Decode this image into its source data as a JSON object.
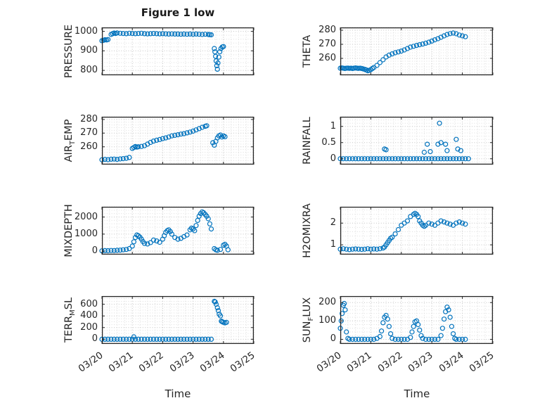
{
  "figure": {
    "title": "Figure 1 low",
    "xlabel": "Time",
    "background": "#ffffff",
    "marker_color": "#0072BD",
    "axis_color": "#262626",
    "grid_color": "#c3c3c3",
    "minor_grid_color": "#dedede"
  },
  "chart_data": {
    "type": "scatter",
    "layout": "4 rows x 2 columns of subplots, shared time x-axis, open circle markers",
    "x_minor_step": 0.25,
    "x_axis": {
      "label": "Time",
      "lim": [
        0,
        5
      ],
      "ticks": [
        0,
        1,
        2,
        3,
        4,
        5
      ],
      "tick_labels": [
        "03/20",
        "03/21",
        "03/22",
        "03/23",
        "03/24",
        "03/25"
      ]
    },
    "subplots": [
      {
        "id": "pressure",
        "ylabel": "PRESSURE",
        "ylabel_parts": [
          {
            "t": "PRESSURE"
          }
        ],
        "ylim": [
          775,
          1020
        ],
        "yticks": [
          800,
          900,
          1000
        ],
        "ytick_labels": [
          "800",
          "900",
          "1000"
        ],
        "x": [
          0,
          0.05,
          0.1,
          0.15,
          0.2,
          0.3,
          0.35,
          0.4,
          0.45,
          0.5,
          0.6,
          0.7,
          0.8,
          0.9,
          1,
          1.1,
          1.2,
          1.3,
          1.4,
          1.5,
          1.6,
          1.7,
          1.8,
          1.9,
          2,
          2.1,
          2.2,
          2.3,
          2.4,
          2.5,
          2.6,
          2.7,
          2.8,
          2.9,
          3,
          3.1,
          3.2,
          3.3,
          3.4,
          3.5,
          3.55,
          3.6,
          3.7,
          3.72,
          3.74,
          3.76,
          3.78,
          3.8,
          3.82,
          3.85,
          3.88,
          3.92,
          3.96,
          4
        ],
        "y": [
          952,
          954,
          957,
          956,
          958,
          984,
          988,
          991,
          989,
          992,
          990,
          989,
          988,
          990,
          989,
          988,
          989,
          990,
          988,
          987,
          988,
          989,
          988,
          987,
          988,
          987,
          986,
          987,
          986,
          986,
          985,
          986,
          985,
          986,
          985,
          986,
          985,
          984,
          985,
          984,
          983,
          982,
          912,
          895,
          872,
          848,
          824,
          806,
          838,
          868,
          895,
          912,
          920,
          922
        ]
      },
      {
        "id": "theta",
        "ylabel": "THETA",
        "ylabel_parts": [
          {
            "t": "THETA"
          }
        ],
        "ylim": [
          248,
          282
        ],
        "yticks": [
          260,
          270,
          280
        ],
        "ytick_labels": [
          "260",
          "270",
          "280"
        ],
        "x": [
          0,
          0.05,
          0.1,
          0.15,
          0.2,
          0.25,
          0.3,
          0.35,
          0.4,
          0.45,
          0.5,
          0.55,
          0.6,
          0.65,
          0.7,
          0.75,
          0.8,
          0.85,
          0.9,
          0.95,
          1,
          1.05,
          1.1,
          1.2,
          1.3,
          1.4,
          1.5,
          1.6,
          1.7,
          1.8,
          1.9,
          2,
          2.1,
          2.2,
          2.3,
          2.4,
          2.5,
          2.6,
          2.7,
          2.8,
          2.9,
          3,
          3.1,
          3.2,
          3.3,
          3.4,
          3.5,
          3.6,
          3.7,
          3.8,
          3.9,
          4,
          4.1
        ],
        "y": [
          253,
          253.2,
          253,
          252.8,
          253,
          253.1,
          252.9,
          253,
          252.8,
          253,
          253.2,
          253,
          252.9,
          253,
          252.8,
          252.5,
          252.2,
          251.8,
          251.2,
          251.5,
          252,
          252.8,
          253.5,
          255,
          257,
          259,
          261,
          262.3,
          263.2,
          264,
          264.6,
          265.2,
          266,
          267,
          268,
          268.6,
          269.2,
          269.7,
          270.2,
          270.8,
          271.5,
          272.3,
          273.2,
          274,
          275,
          276,
          277,
          277.6,
          278,
          277.5,
          276.6,
          276,
          275.4
        ]
      },
      {
        "id": "air-temp",
        "ylabel": "AIR_TEMP",
        "ylabel_parts": [
          {
            "t": "AIR"
          },
          {
            "s": "T"
          },
          {
            "t": "EMP"
          }
        ],
        "ylim": [
          247,
          282
        ],
        "yticks": [
          260,
          270,
          280
        ],
        "ytick_labels": [
          "260",
          "270",
          "280"
        ],
        "x": [
          0,
          0.1,
          0.2,
          0.3,
          0.4,
          0.5,
          0.6,
          0.7,
          0.8,
          0.9,
          1,
          1.05,
          1.1,
          1.15,
          1.2,
          1.3,
          1.4,
          1.5,
          1.6,
          1.7,
          1.8,
          1.9,
          2,
          2.1,
          2.2,
          2.3,
          2.4,
          2.5,
          2.6,
          2.7,
          2.8,
          2.9,
          3,
          3.1,
          3.2,
          3.3,
          3.4,
          3.45,
          3.65,
          3.7,
          3.75,
          3.8,
          3.85,
          3.9,
          3.95,
          4,
          4.05
        ],
        "y": [
          250.5,
          250.8,
          250.6,
          250.9,
          251,
          250.8,
          251.1,
          251.3,
          251.6,
          252.2,
          258.8,
          259.5,
          260.2,
          259.8,
          260,
          260.3,
          260.8,
          262,
          263.2,
          264.2,
          264.8,
          265.3,
          266,
          266.5,
          267.2,
          268,
          268.4,
          268.8,
          269.3,
          269.6,
          270.2,
          270.8,
          271.5,
          272.4,
          273.3,
          274.3,
          275,
          275.4,
          263,
          261.2,
          264,
          266.5,
          268,
          268.6,
          267.2,
          268,
          267.4
        ]
      },
      {
        "id": "rainfall",
        "ylabel": "RAINFALL",
        "ylabel_parts": [
          {
            "t": "RAINFALL"
          }
        ],
        "ylim": [
          -0.18,
          1.3
        ],
        "yticks": [
          0,
          0.5,
          1
        ],
        "ytick_labels": [
          "0",
          "0.5",
          "1"
        ],
        "x": [
          0,
          0.1,
          0.2,
          0.3,
          0.4,
          0.5,
          0.6,
          0.7,
          0.8,
          0.9,
          1,
          1.1,
          1.2,
          1.3,
          1.4,
          1.5,
          1.6,
          1.7,
          1.8,
          1.9,
          2,
          2.1,
          2.2,
          2.3,
          2.4,
          2.5,
          2.6,
          2.7,
          2.8,
          2.9,
          3,
          3.1,
          3.2,
          3.3,
          3.4,
          3.5,
          3.6,
          3.7,
          3.8,
          3.9,
          4,
          4.1,
          4.2,
          1.45,
          1.5,
          2.75,
          2.85,
          2.95,
          3.2,
          3.25,
          3.3,
          3.45,
          3.5,
          3.8,
          3.85,
          3.95
        ],
        "y": [
          0,
          0,
          0,
          0,
          0,
          0,
          0,
          0,
          0,
          0,
          0,
          0,
          0,
          0,
          0,
          0,
          0,
          0,
          0,
          0,
          0,
          0,
          0,
          0,
          0,
          0,
          0,
          0,
          0,
          0,
          0,
          0,
          0,
          0,
          0,
          0,
          0,
          0,
          0,
          0,
          0,
          0,
          0,
          0.3,
          0.28,
          0.2,
          0.45,
          0.22,
          0.45,
          1.1,
          0.5,
          0.45,
          0.25,
          0.6,
          0.3,
          0.25
        ]
      },
      {
        "id": "mixdepth",
        "ylabel": "MIXDEPTH",
        "ylabel_parts": [
          {
            "t": "MIXDEPTH"
          }
        ],
        "ylim": [
          -200,
          2600
        ],
        "yticks": [
          0,
          1000,
          2000
        ],
        "ytick_labels": [
          "0",
          "1000",
          "2000"
        ],
        "x": [
          0,
          0.1,
          0.2,
          0.3,
          0.4,
          0.5,
          0.6,
          0.7,
          0.8,
          0.9,
          1,
          1.05,
          1.1,
          1.15,
          1.2,
          1.25,
          1.3,
          1.35,
          1.4,
          1.5,
          1.6,
          1.7,
          1.8,
          1.9,
          2,
          2.05,
          2.1,
          2.15,
          2.2,
          2.25,
          2.3,
          2.4,
          2.5,
          2.6,
          2.7,
          2.8,
          2.9,
          2.95,
          3,
          3.05,
          3.1,
          3.15,
          3.2,
          3.25,
          3.3,
          3.35,
          3.4,
          3.45,
          3.5,
          3.55,
          3.6,
          3.7,
          3.75,
          3.8,
          3.9,
          4,
          4.05,
          4.1,
          4.15
        ],
        "y": [
          20,
          30,
          25,
          40,
          35,
          50,
          60,
          80,
          100,
          150,
          300,
          550,
          800,
          950,
          900,
          820,
          700,
          560,
          450,
          420,
          500,
          650,
          600,
          520,
          700,
          900,
          1100,
          1200,
          1250,
          1150,
          1000,
          800,
          700,
          750,
          850,
          950,
          1250,
          1350,
          1300,
          1200,
          1500,
          1800,
          2050,
          2200,
          2300,
          2250,
          2150,
          2050,
          1900,
          1600,
          1300,
          150,
          80,
          50,
          100,
          350,
          400,
          300,
          80
        ]
      },
      {
        "id": "h2omixra",
        "ylabel": "H2OMIXRA",
        "ylabel_parts": [
          {
            "t": "H2OMIXRA"
          }
        ],
        "ylim": [
          0.55,
          2.75
        ],
        "yticks": [
          1,
          2
        ],
        "ytick_labels": [
          "1",
          "2"
        ],
        "x": [
          0,
          0.1,
          0.2,
          0.3,
          0.4,
          0.5,
          0.6,
          0.7,
          0.8,
          0.9,
          1,
          1.1,
          1.2,
          1.3,
          1.4,
          1.45,
          1.5,
          1.55,
          1.6,
          1.65,
          1.7,
          1.8,
          1.9,
          2,
          2.1,
          2.2,
          2.3,
          2.4,
          2.45,
          2.5,
          2.55,
          2.6,
          2.65,
          2.7,
          2.75,
          2.8,
          2.9,
          3,
          3.1,
          3.2,
          3.3,
          3.4,
          3.5,
          3.6,
          3.7,
          3.8,
          3.9,
          4,
          4.1
        ],
        "y": [
          0.8,
          0.82,
          0.8,
          0.78,
          0.8,
          0.81,
          0.8,
          0.79,
          0.8,
          0.82,
          0.8,
          0.81,
          0.8,
          0.82,
          0.85,
          0.9,
          1,
          1.1,
          1.2,
          1.3,
          1.35,
          1.5,
          1.7,
          1.9,
          2,
          2.1,
          2.3,
          2.4,
          2.45,
          2.4,
          2.3,
          2.1,
          2,
          1.9,
          1.85,
          1.9,
          2,
          1.95,
          1.9,
          2,
          2.1,
          2.05,
          2,
          1.95,
          1.9,
          2,
          2.05,
          2,
          1.95
        ]
      },
      {
        "id": "terr-msl",
        "ylabel": "TERR_MSL",
        "ylabel_parts": [
          {
            "t": "TERR"
          },
          {
            "s": "M"
          },
          {
            "t": "SL"
          }
        ],
        "ylim": [
          -80,
          740
        ],
        "yticks": [
          0,
          200,
          400,
          600
        ],
        "ytick_labels": [
          "0",
          "200",
          "400",
          "600"
        ],
        "x": [
          0,
          0.1,
          0.2,
          0.3,
          0.4,
          0.5,
          0.6,
          0.7,
          0.8,
          0.9,
          1,
          1.1,
          1.2,
          1.3,
          1.4,
          1.5,
          1.6,
          1.7,
          1.8,
          1.9,
          2,
          2.1,
          2.2,
          2.3,
          2.4,
          2.5,
          2.6,
          2.7,
          2.8,
          2.9,
          3,
          3.1,
          3.2,
          3.3,
          3.4,
          3.5,
          3.6,
          1.05,
          3.7,
          3.73,
          3.76,
          3.8,
          3.83,
          3.86,
          3.9,
          3.93,
          3.96,
          4,
          4.05,
          4.1
        ],
        "y": [
          0,
          0,
          0,
          0,
          0,
          0,
          0,
          0,
          0,
          0,
          0,
          0,
          0,
          0,
          0,
          0,
          0,
          0,
          0,
          0,
          0,
          0,
          0,
          0,
          0,
          0,
          0,
          0,
          0,
          0,
          0,
          0,
          0,
          0,
          0,
          0,
          0,
          40,
          650,
          640,
          600,
          540,
          490,
          430,
          400,
          310,
          300,
          290,
          280,
          290
        ]
      },
      {
        "id": "sun-flux",
        "ylabel": "SUN_FLUX",
        "ylabel_parts": [
          {
            "t": "SUN"
          },
          {
            "s": "F"
          },
          {
            "t": "LUX"
          }
        ],
        "ylim": [
          -25,
          235
        ],
        "yticks": [
          0,
          100,
          200
        ],
        "ytick_labels": [
          "0",
          "100",
          "200"
        ],
        "x": [
          0,
          0.03,
          0.06,
          0.1,
          0.13,
          0.16,
          0.2,
          0.25,
          0.3,
          0.4,
          0.5,
          0.6,
          0.7,
          0.8,
          0.9,
          1,
          1.1,
          1.2,
          1.3,
          1.35,
          1.4,
          1.45,
          1.5,
          1.55,
          1.6,
          1.65,
          1.7,
          1.8,
          1.9,
          2,
          2.1,
          2.2,
          2.3,
          2.35,
          2.4,
          2.45,
          2.5,
          2.55,
          2.6,
          2.65,
          2.7,
          2.8,
          2.9,
          3,
          3.1,
          3.2,
          3.3,
          3.35,
          3.4,
          3.45,
          3.5,
          3.55,
          3.6,
          3.65,
          3.7,
          3.75,
          3.8,
          3.9,
          4,
          4.1
        ],
        "y": [
          60,
          100,
          140,
          185,
          195,
          160,
          40,
          5,
          0,
          0,
          0,
          0,
          0,
          0,
          0,
          0,
          0,
          5,
          15,
          45,
          90,
          120,
          130,
          110,
          70,
          30,
          5,
          0,
          0,
          0,
          0,
          0,
          10,
          40,
          70,
          95,
          100,
          80,
          50,
          20,
          5,
          0,
          0,
          0,
          0,
          0,
          20,
          60,
          110,
          150,
          175,
          160,
          120,
          70,
          30,
          5,
          0,
          0,
          0,
          0
        ]
      }
    ]
  }
}
